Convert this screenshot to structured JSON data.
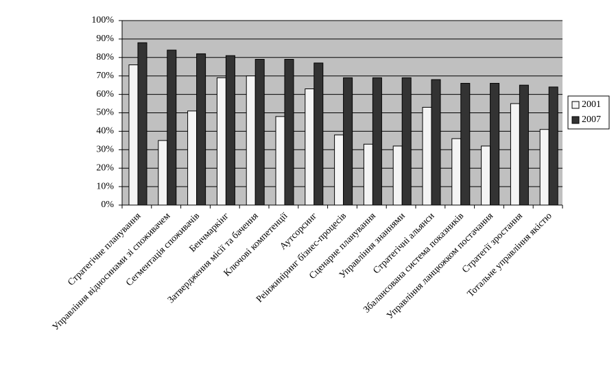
{
  "chart_data": {
    "type": "bar",
    "categories": [
      "Стратегічне планування",
      "Управління відносинами зі споживачем",
      "Сегментація споживачів",
      "Бенчмаркінг",
      "Затвердження місії та бачення",
      "Ключові компетенції",
      "Аутсорсинг",
      "Реінжиніринг бізнес-процесів",
      "Сценарне планування",
      "Управління знаннями",
      "Стратегічні альянси",
      "Збалансована система показників",
      "Управління ланцюжком постачання",
      "Стратегії зростання",
      "Тотальне управління якістю"
    ],
    "series": [
      {
        "name": "2001",
        "color": "#f4f4f4",
        "values": [
          76,
          35,
          51,
          69,
          70,
          48,
          63,
          38,
          33,
          32,
          53,
          36,
          32,
          55,
          41
        ]
      },
      {
        "name": "2007",
        "color": "#333333",
        "values": [
          88,
          84,
          82,
          81,
          79,
          79,
          77,
          69,
          69,
          69,
          68,
          66,
          66,
          65,
          64
        ]
      }
    ],
    "ylim": [
      0,
      100
    ],
    "yticks": [
      {
        "value": 0,
        "label": "0%"
      },
      {
        "value": 10,
        "label": "10%"
      },
      {
        "value": 20,
        "label": "20%"
      },
      {
        "value": 30,
        "label": "30%"
      },
      {
        "value": 40,
        "label": "40%"
      },
      {
        "value": 50,
        "label": "50%"
      },
      {
        "value": 60,
        "label": "60%"
      },
      {
        "value": 70,
        "label": "70%"
      },
      {
        "value": 80,
        "label": "80%"
      },
      {
        "value": 90,
        "label": "90%"
      },
      {
        "value": 100,
        "label": "100%"
      }
    ],
    "grid": true,
    "plot_background": "#c0c0c0",
    "legend": "right"
  }
}
